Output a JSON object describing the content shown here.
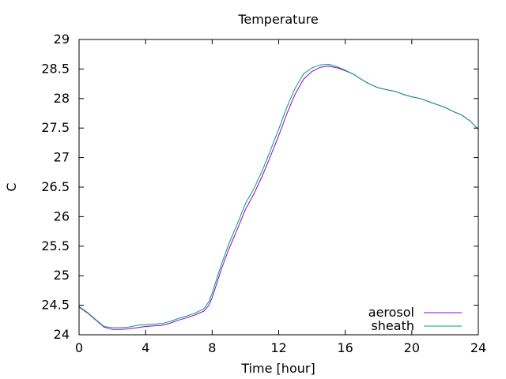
{
  "chart_data": {
    "type": "line",
    "title": "Temperature",
    "xlabel": "Time [hour]",
    "ylabel": "C",
    "xlim": [
      0,
      24
    ],
    "ylim": [
      24,
      29
    ],
    "xticks": [
      0,
      4,
      8,
      12,
      16,
      20,
      24
    ],
    "yticks": [
      24,
      24.5,
      25,
      25.5,
      26,
      26.5,
      27,
      27.5,
      28,
      28.5,
      29
    ],
    "grid": false,
    "legend_position": "bottom-right",
    "series": [
      {
        "name": "aerosol",
        "color": "#9400d3",
        "x": [
          0,
          0.5,
          1,
          1.5,
          2,
          2.5,
          3,
          3.5,
          4,
          4.5,
          5,
          5.5,
          6,
          6.5,
          7,
          7.5,
          7.8,
          8,
          8.2,
          8.4,
          8.6,
          8.8,
          9,
          9.5,
          10,
          10.5,
          11,
          11.5,
          12,
          12.5,
          13,
          13.5,
          14,
          14.5,
          15,
          15.5,
          16,
          16.5,
          17,
          17.5,
          18,
          18.5,
          19,
          19.5,
          20,
          20.5,
          21,
          21.5,
          22,
          22.5,
          23,
          23.5,
          24
        ],
        "values": [
          24.47,
          24.37,
          24.25,
          24.13,
          24.09,
          24.09,
          24.1,
          24.12,
          24.14,
          24.15,
          24.16,
          24.2,
          24.25,
          24.29,
          24.34,
          24.4,
          24.5,
          24.63,
          24.8,
          24.98,
          25.15,
          25.3,
          25.45,
          25.78,
          26.12,
          26.38,
          26.68,
          27.02,
          27.37,
          27.75,
          28.08,
          28.33,
          28.46,
          28.53,
          28.55,
          28.52,
          28.47,
          28.41,
          28.32,
          28.24,
          28.18,
          28.15,
          28.12,
          28.07,
          28.03,
          28.0,
          27.95,
          27.9,
          27.85,
          27.78,
          27.72,
          27.62,
          27.48
        ]
      },
      {
        "name": "sheath",
        "color": "#009e73",
        "x": [
          0,
          0.5,
          1,
          1.5,
          2,
          2.5,
          3,
          3.5,
          4,
          4.5,
          5,
          5.5,
          6,
          6.5,
          7,
          7.5,
          7.8,
          8,
          8.2,
          8.4,
          8.6,
          8.8,
          9,
          9.5,
          10,
          10.5,
          11,
          11.5,
          12,
          12.5,
          13,
          13.5,
          14,
          14.5,
          15,
          15.5,
          16,
          16.5,
          17,
          17.5,
          18,
          18.5,
          19,
          19.5,
          20,
          20.5,
          21,
          21.5,
          22,
          22.5,
          23,
          23.5,
          24
        ],
        "values": [
          24.48,
          24.38,
          24.26,
          24.14,
          24.12,
          24.12,
          24.13,
          24.16,
          24.17,
          24.18,
          24.19,
          24.23,
          24.28,
          24.32,
          24.37,
          24.44,
          24.56,
          24.7,
          24.88,
          25.06,
          25.23,
          25.38,
          25.54,
          25.87,
          26.22,
          26.47,
          26.77,
          27.12,
          27.48,
          27.86,
          28.18,
          28.42,
          28.52,
          28.57,
          28.58,
          28.54,
          28.48,
          28.41,
          28.32,
          28.24,
          28.18,
          28.15,
          28.12,
          28.07,
          28.03,
          28.0,
          27.95,
          27.9,
          27.85,
          27.78,
          27.72,
          27.62,
          27.48
        ]
      }
    ]
  }
}
